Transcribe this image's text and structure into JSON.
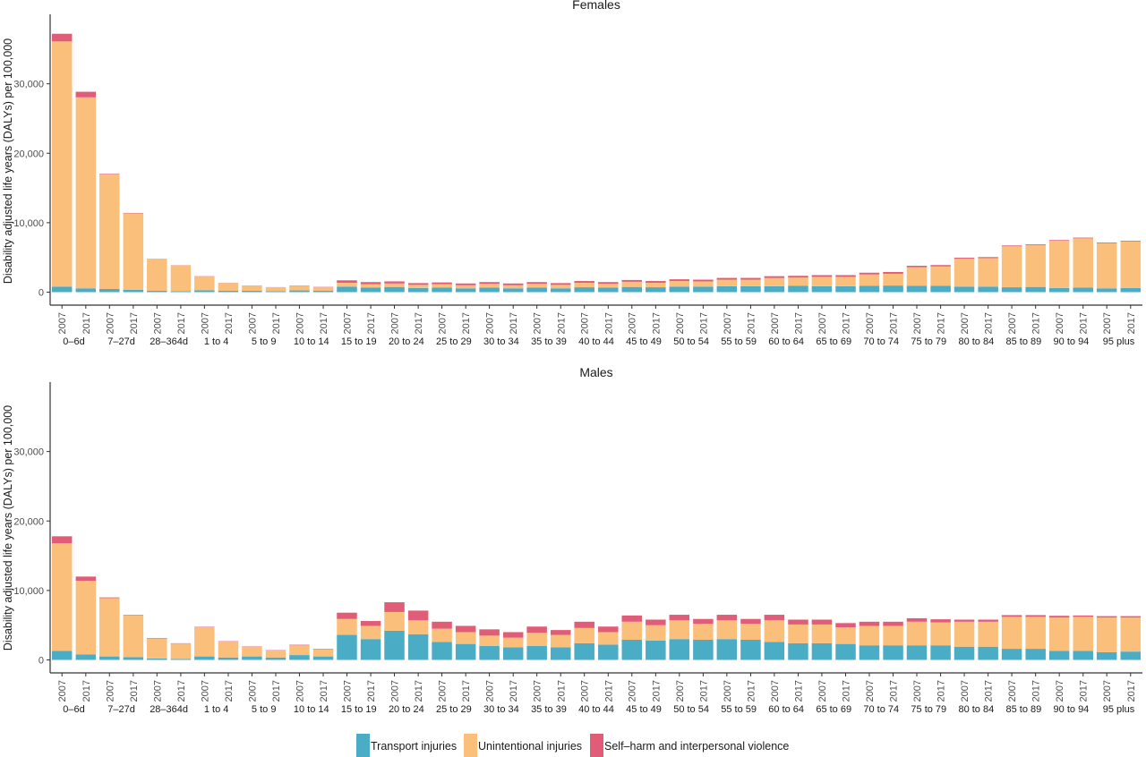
{
  "chart_data": {
    "type": "bar",
    "stacked": true,
    "ylabel": "Disability adjusted life years (DALYs) per 100,000",
    "ylim": [
      0,
      40000
    ],
    "yticks": [
      0,
      10000,
      20000,
      30000
    ],
    "ytick_labels": [
      "0",
      "10,000",
      "20,000",
      "30,000"
    ],
    "grid": false,
    "legend_position": "bottom",
    "categories": [
      "0–6d",
      "7–27d",
      "28–364d",
      "1 to 4",
      "5 to 9",
      "10 to 14",
      "15 to 19",
      "20 to 24",
      "25 to 29",
      "30 to 34",
      "35 to 39",
      "40 to 44",
      "45 to 49",
      "50 to 54",
      "55 to 59",
      "60 to 64",
      "65 to 69",
      "70 to 74",
      "75 to 79",
      "80 to 84",
      "85 to 89",
      "90 to 94",
      "95 plus"
    ],
    "years": [
      "2007",
      "2017"
    ],
    "series_names": [
      "Transport injuries",
      "Unintentional injuries",
      "Self–harm and interpersonal violence"
    ],
    "colors": [
      "#4bacc6",
      "#fbbf7c",
      "#e05c77"
    ],
    "panels": [
      {
        "title": "Females",
        "series": [
          {
            "name": "Transport injuries",
            "values": [
              [
                800,
                550
              ],
              [
                450,
                350
              ],
              [
                200,
                150
              ],
              [
                280,
                200
              ],
              [
                200,
                150
              ],
              [
                250,
                200
              ],
              [
                800,
                650
              ],
              [
                750,
                600
              ],
              [
                650,
                550
              ],
              [
                650,
                550
              ],
              [
                650,
                550
              ],
              [
                700,
                650
              ],
              [
                750,
                700
              ],
              [
                800,
                800
              ],
              [
                850,
                850
              ],
              [
                850,
                900
              ],
              [
                850,
                850
              ],
              [
                900,
                950
              ],
              [
                900,
                900
              ],
              [
                800,
                800
              ],
              [
                700,
                750
              ],
              [
                600,
                650
              ],
              [
                550,
                600
              ]
            ]
          },
          {
            "name": "Unintentional injuries",
            "values": [
              [
                35300,
                27500
              ],
              [
                16500,
                11000
              ],
              [
                4550,
                3700
              ],
              [
                2000,
                1100
              ],
              [
                750,
                550
              ],
              [
                650,
                500
              ],
              [
                550,
                500
              ],
              [
                500,
                450
              ],
              [
                500,
                450
              ],
              [
                550,
                450
              ],
              [
                550,
                500
              ],
              [
                650,
                550
              ],
              [
                750,
                650
              ],
              [
                800,
                750
              ],
              [
                950,
                950
              ],
              [
                1200,
                1200
              ],
              [
                1350,
                1350
              ],
              [
                1650,
                1700
              ],
              [
                2700,
                2800
              ],
              [
                4000,
                4100
              ],
              [
                5900,
                6000
              ],
              [
                6800,
                7100
              ],
              [
                6500,
                6700
              ]
            ]
          },
          {
            "name": "Self–harm and interpersonal violence",
            "values": [
              [
                1100,
                800
              ],
              [
                80,
                60
              ],
              [
                40,
                30
              ],
              [
                30,
                25
              ],
              [
                20,
                20
              ],
              [
                40,
                50
              ],
              [
                350,
                300
              ],
              [
                300,
                250
              ],
              [
                250,
                250
              ],
              [
                250,
                250
              ],
              [
                250,
                250
              ],
              [
                250,
                250
              ],
              [
                250,
                250
              ],
              [
                250,
                250
              ],
              [
                250,
                250
              ],
              [
                250,
                250
              ],
              [
                250,
                250
              ],
              [
                250,
                250
              ],
              [
                200,
                200
              ],
              [
                150,
                150
              ],
              [
                120,
                120
              ],
              [
                100,
                100
              ],
              [
                100,
                100
              ]
            ]
          }
        ]
      },
      {
        "title": "Males",
        "series": [
          {
            "name": "Transport injuries",
            "values": [
              [
                1300,
                800
              ],
              [
                500,
                400
              ],
              [
                200,
                150
              ],
              [
                500,
                350
              ],
              [
                500,
                350
              ],
              [
                700,
                500
              ],
              [
                3600,
                3000
              ],
              [
                4200,
                3700
              ],
              [
                2600,
                2300
              ],
              [
                2000,
                1800
              ],
              [
                2000,
                1800
              ],
              [
                2400,
                2200
              ],
              [
                2900,
                2800
              ],
              [
                3000,
                2900
              ],
              [
                3000,
                2900
              ],
              [
                2600,
                2400
              ],
              [
                2400,
                2300
              ],
              [
                2100,
                2100
              ],
              [
                2100,
                2100
              ],
              [
                1900,
                1900
              ],
              [
                1600,
                1600
              ],
              [
                1300,
                1300
              ],
              [
                1100,
                1200
              ]
            ]
          },
          {
            "name": "Unintentional injuries",
            "values": [
              [
                15500,
                10600
              ],
              [
                8400,
                6000
              ],
              [
                2900,
                2200
              ],
              [
                4200,
                2300
              ],
              [
                1400,
                1000
              ],
              [
                1400,
                1000
              ],
              [
                2300,
                1900
              ],
              [
                2700,
                2000
              ],
              [
                1900,
                1700
              ],
              [
                1500,
                1400
              ],
              [
                1900,
                1800
              ],
              [
                2200,
                1800
              ],
              [
                2600,
                2200
              ],
              [
                2700,
                2300
              ],
              [
                2700,
                2300
              ],
              [
                3100,
                2700
              ],
              [
                2700,
                2400
              ],
              [
                2800,
                2800
              ],
              [
                3400,
                3300
              ],
              [
                3600,
                3600
              ],
              [
                4600,
                4600
              ],
              [
                4800,
                4900
              ],
              [
                5000,
                4900
              ]
            ]
          },
          {
            "name": "Self–harm and interpersonal violence",
            "values": [
              [
                1000,
                600
              ],
              [
                100,
                80
              ],
              [
                60,
                50
              ],
              [
                60,
                50
              ],
              [
                50,
                50
              ],
              [
                80,
                80
              ],
              [
                900,
                700
              ],
              [
                1400,
                1400
              ],
              [
                1000,
                900
              ],
              [
                900,
                800
              ],
              [
                900,
                700
              ],
              [
                900,
                800
              ],
              [
                900,
                800
              ],
              [
                800,
                700
              ],
              [
                800,
                700
              ],
              [
                800,
                700
              ],
              [
                700,
                600
              ],
              [
                600,
                600
              ],
              [
                500,
                450
              ],
              [
                300,
                300
              ],
              [
                250,
                250
              ],
              [
                250,
                200
              ],
              [
                200,
                200
              ]
            ]
          }
        ]
      }
    ]
  }
}
